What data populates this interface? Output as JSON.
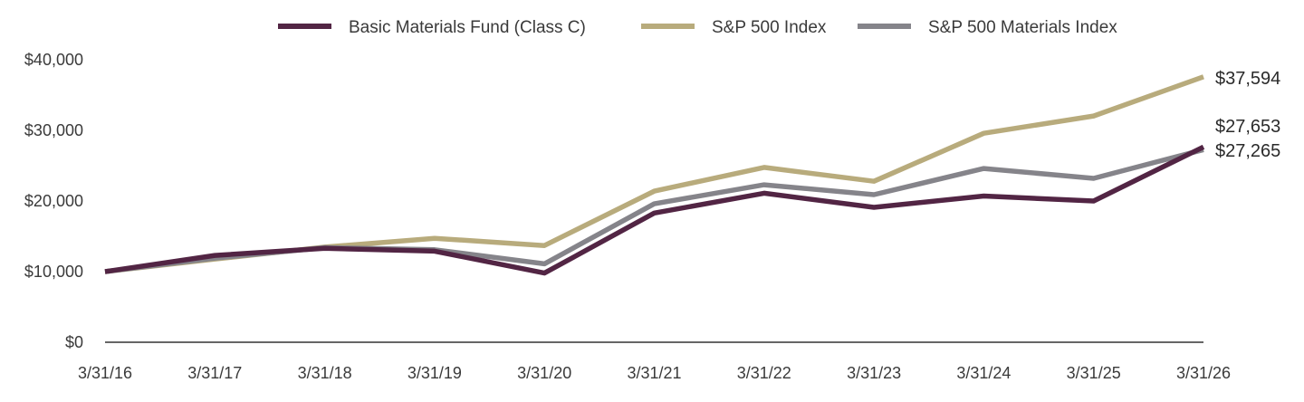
{
  "chart_data": {
    "type": "line",
    "title": "",
    "xlabel": "",
    "ylabel": "",
    "categories": [
      "3/31/16",
      "3/31/17",
      "3/31/18",
      "3/31/19",
      "3/31/20",
      "3/31/21",
      "3/31/22",
      "3/31/23",
      "3/31/24",
      "3/31/25",
      "3/31/26"
    ],
    "ylim": [
      0,
      40000
    ],
    "y_ticks": [
      0,
      10000,
      20000,
      30000,
      40000
    ],
    "y_tick_labels": [
      "$0",
      "$10,000",
      "$20,000",
      "$30,000",
      "$40,000"
    ],
    "grid": false,
    "legend_position": "top-center",
    "series": [
      {
        "name": "S&P 500 Index",
        "color": "#b8ab7c",
        "values": [
          10000,
          11770,
          13470,
          14720,
          13690,
          21400,
          24750,
          22790,
          29590,
          32040,
          37594
        ],
        "end_label": "$37,594"
      },
      {
        "name": "S&P 500 Materials Index",
        "color": "#85848a",
        "values": [
          10000,
          11900,
          13400,
          13100,
          11100,
          19600,
          22300,
          20900,
          24600,
          23200,
          27265
        ],
        "end_label": "$27,265"
      },
      {
        "name": "Basic Materials Fund (Class C)",
        "color": "#522544",
        "values": [
          10000,
          12300,
          13300,
          12900,
          9800,
          18300,
          21100,
          19100,
          20700,
          20000,
          27653
        ],
        "end_label": "$27,653"
      }
    ],
    "legend_order": [
      "Basic Materials Fund (Class C)",
      "S&P 500 Index",
      "S&P 500 Materials Index"
    ]
  }
}
